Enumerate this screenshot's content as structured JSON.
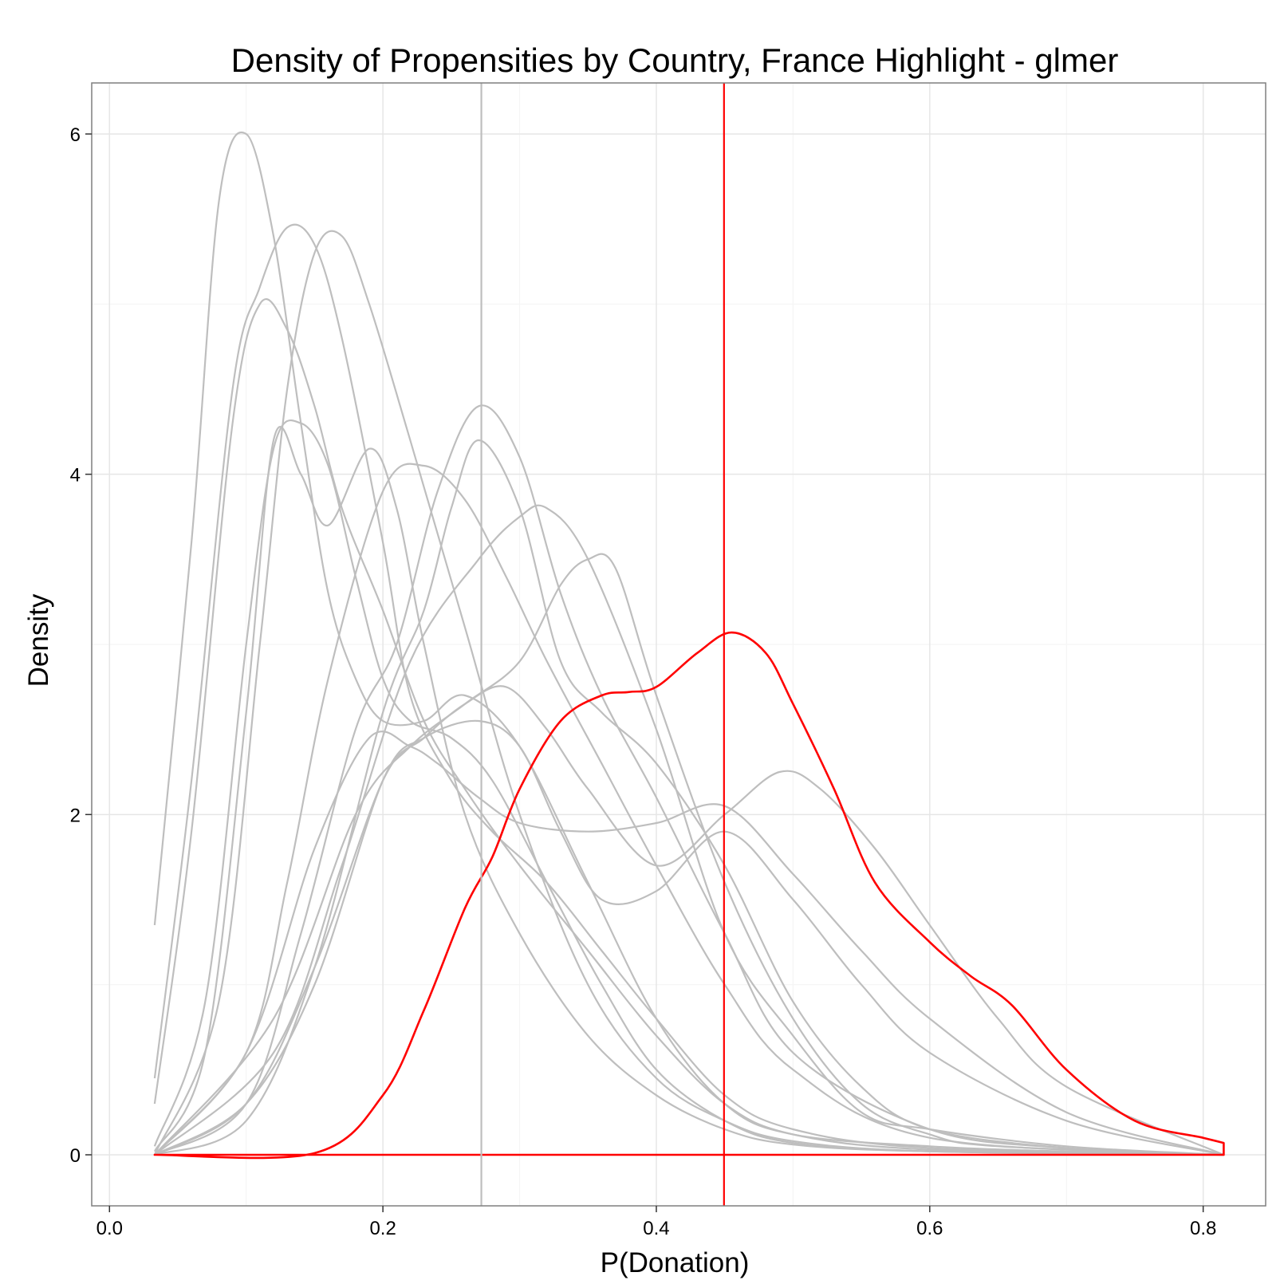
{
  "chart_data": {
    "type": "line",
    "title": "Density of Propensities by Country, France Highlight - glmer",
    "xlabel": "P(Donation)",
    "ylabel": "Density",
    "xlim": [
      -0.013,
      0.8457
    ],
    "ylim": [
      -0.3,
      6.3
    ],
    "x_ticks": [
      0.0,
      0.2,
      0.4,
      0.6,
      0.8
    ],
    "x_tick_labels": [
      "0.0",
      "0.2",
      "0.4",
      "0.6",
      "0.8"
    ],
    "y_ticks": [
      0,
      2,
      4,
      6
    ],
    "y_tick_labels": [
      "0",
      "2",
      "4",
      "6"
    ],
    "grid": true,
    "legend": "none",
    "colors": {
      "other": "#bebebe",
      "highlight": "#ff0000",
      "panel_border": "#7f7f7f",
      "grid_major": "#e6e6e6",
      "grid_minor": "#f5f5f5"
    },
    "vlines": [
      {
        "x": 0.272,
        "color": "#bebebe"
      },
      {
        "x": 0.4495,
        "color": "#ff0000"
      }
    ],
    "series": [
      {
        "color": "#bebebe",
        "x": [
          0.033,
          0.06,
          0.08,
          0.1,
          0.12,
          0.14,
          0.16,
          0.18,
          0.2,
          0.23,
          0.26,
          0.3,
          0.35,
          0.4,
          0.45,
          0.5,
          0.6,
          0.7,
          0.815
        ],
        "y": [
          1.35,
          3.6,
          5.6,
          6.0,
          5.4,
          4.3,
          3.3,
          2.8,
          2.55,
          2.55,
          2.7,
          2.4,
          1.6,
          0.8,
          0.3,
          0.12,
          0.05,
          0.02,
          0.0
        ]
      },
      {
        "color": "#bebebe",
        "x": [
          0.033,
          0.06,
          0.09,
          0.11,
          0.13,
          0.15,
          0.17,
          0.2,
          0.22,
          0.25,
          0.28,
          0.32,
          0.36,
          0.4,
          0.45,
          0.5,
          0.6,
          0.815
        ],
        "y": [
          0.45,
          2.2,
          4.5,
          5.1,
          5.45,
          5.35,
          4.8,
          3.6,
          2.7,
          2.2,
          1.9,
          1.6,
          1.2,
          0.8,
          0.35,
          0.15,
          0.04,
          0.0
        ]
      },
      {
        "color": "#bebebe",
        "x": [
          0.033,
          0.06,
          0.09,
          0.11,
          0.13,
          0.15,
          0.17,
          0.2,
          0.23,
          0.26,
          0.3,
          0.35,
          0.4,
          0.45,
          0.5,
          0.6,
          0.815
        ],
        "y": [
          0.3,
          1.9,
          4.3,
          5.0,
          4.85,
          4.4,
          3.8,
          3.2,
          2.55,
          2.15,
          1.7,
          1.2,
          0.7,
          0.3,
          0.12,
          0.03,
          0.0
        ]
      },
      {
        "color": "#bebebe",
        "x": [
          0.033,
          0.08,
          0.11,
          0.13,
          0.15,
          0.17,
          0.19,
          0.22,
          0.26,
          0.3,
          0.35,
          0.4,
          0.45,
          0.5,
          0.6,
          0.815
        ],
        "y": [
          0.0,
          0.9,
          3.0,
          4.5,
          5.3,
          5.4,
          5.0,
          4.2,
          3.1,
          2.0,
          1.0,
          0.45,
          0.2,
          0.08,
          0.02,
          0.0
        ]
      },
      {
        "color": "#bebebe",
        "x": [
          0.033,
          0.07,
          0.1,
          0.12,
          0.14,
          0.16,
          0.18,
          0.2,
          0.22,
          0.25,
          0.28,
          0.32,
          0.36,
          0.4,
          0.45,
          0.5,
          0.6,
          0.815
        ],
        "y": [
          0.05,
          0.9,
          3.0,
          4.15,
          4.3,
          4.05,
          3.4,
          2.8,
          2.55,
          2.45,
          2.2,
          1.6,
          1.0,
          0.5,
          0.2,
          0.07,
          0.02,
          0.0
        ]
      },
      {
        "color": "#bebebe",
        "x": [
          0.033,
          0.07,
          0.1,
          0.12,
          0.14,
          0.16,
          0.19,
          0.21,
          0.23,
          0.26,
          0.3,
          0.35,
          0.4,
          0.45,
          0.5,
          0.6,
          0.815
        ],
        "y": [
          0.02,
          0.6,
          2.6,
          4.2,
          4.0,
          3.7,
          4.15,
          3.8,
          3.0,
          2.0,
          1.3,
          0.7,
          0.35,
          0.15,
          0.06,
          0.02,
          0.0
        ]
      },
      {
        "color": "#bebebe",
        "x": [
          0.033,
          0.1,
          0.13,
          0.16,
          0.2,
          0.23,
          0.26,
          0.29,
          0.32,
          0.36,
          0.4,
          0.45,
          0.5,
          0.6,
          0.815
        ],
        "y": [
          0.0,
          0.6,
          1.6,
          2.8,
          3.9,
          4.05,
          3.85,
          3.4,
          2.9,
          2.3,
          1.7,
          1.0,
          0.5,
          0.1,
          0.0
        ]
      },
      {
        "color": "#bebebe",
        "x": [
          0.033,
          0.1,
          0.14,
          0.18,
          0.21,
          0.24,
          0.27,
          0.3,
          0.33,
          0.36,
          0.4,
          0.45,
          0.5,
          0.6,
          0.7,
          0.815
        ],
        "y": [
          0.0,
          0.3,
          1.3,
          2.5,
          3.0,
          3.9,
          4.4,
          4.1,
          3.3,
          2.7,
          2.1,
          1.3,
          0.6,
          0.15,
          0.04,
          0.0
        ]
      },
      {
        "color": "#bebebe",
        "x": [
          0.033,
          0.1,
          0.15,
          0.2,
          0.23,
          0.25,
          0.27,
          0.3,
          0.33,
          0.36,
          0.4,
          0.45,
          0.5,
          0.55,
          0.6,
          0.7,
          0.815
        ],
        "y": [
          0.0,
          0.2,
          1.1,
          2.6,
          3.2,
          3.8,
          4.2,
          3.8,
          2.9,
          2.6,
          2.3,
          1.7,
          0.9,
          0.4,
          0.15,
          0.04,
          0.0
        ]
      },
      {
        "color": "#bebebe",
        "x": [
          0.033,
          0.12,
          0.17,
          0.22,
          0.27,
          0.3,
          0.32,
          0.35,
          0.4,
          0.45,
          0.5,
          0.55,
          0.6,
          0.7,
          0.815
        ],
        "y": [
          0.0,
          0.6,
          1.7,
          2.9,
          3.5,
          3.75,
          3.8,
          3.5,
          2.5,
          1.3,
          0.7,
          0.25,
          0.15,
          0.05,
          0.0
        ]
      },
      {
        "color": "#bebebe",
        "x": [
          0.033,
          0.12,
          0.18,
          0.22,
          0.26,
          0.3,
          0.33,
          0.35,
          0.37,
          0.4,
          0.45,
          0.5,
          0.55,
          0.6,
          0.65,
          0.815
        ],
        "y": [
          0.0,
          0.8,
          2.0,
          2.4,
          2.65,
          2.9,
          3.35,
          3.5,
          3.45,
          2.7,
          1.6,
          0.8,
          0.3,
          0.12,
          0.05,
          0.0
        ]
      },
      {
        "color": "#bebebe",
        "x": [
          0.033,
          0.1,
          0.15,
          0.19,
          0.22,
          0.24,
          0.27,
          0.3,
          0.35,
          0.4,
          0.45,
          0.5,
          0.55,
          0.6,
          0.7,
          0.815
        ],
        "y": [
          0.0,
          0.6,
          1.8,
          2.45,
          2.4,
          2.3,
          2.1,
          1.95,
          1.9,
          1.95,
          2.05,
          1.65,
          1.2,
          0.8,
          0.25,
          0.0
        ]
      },
      {
        "color": "#bebebe",
        "x": [
          0.033,
          0.1,
          0.15,
          0.2,
          0.23,
          0.26,
          0.29,
          0.32,
          0.35,
          0.4,
          0.45,
          0.49,
          0.52,
          0.56,
          0.6,
          0.65,
          0.7,
          0.815
        ],
        "y": [
          0.0,
          0.3,
          1.1,
          2.2,
          2.45,
          2.65,
          2.75,
          2.5,
          2.15,
          1.7,
          2.0,
          2.25,
          2.15,
          1.8,
          1.35,
          0.8,
          0.4,
          0.0
        ]
      },
      {
        "color": "#bebebe",
        "x": [
          0.033,
          0.1,
          0.15,
          0.2,
          0.23,
          0.27,
          0.3,
          0.33,
          0.36,
          0.4,
          0.45,
          0.5,
          0.55,
          0.6,
          0.7,
          0.815
        ],
        "y": [
          0.0,
          0.3,
          1.0,
          2.2,
          2.45,
          2.55,
          2.4,
          1.9,
          1.5,
          1.55,
          1.9,
          1.5,
          1.0,
          0.6,
          0.2,
          0.0
        ]
      },
      {
        "color": "#ff0000",
        "highlight": true,
        "x": [
          0.033,
          0.15,
          0.2,
          0.23,
          0.26,
          0.28,
          0.3,
          0.33,
          0.36,
          0.38,
          0.4,
          0.43,
          0.455,
          0.48,
          0.5,
          0.53,
          0.56,
          0.6,
          0.63,
          0.66,
          0.7,
          0.75,
          0.8,
          0.815,
          0.815,
          0.033
        ],
        "y": [
          0.0,
          0.01,
          0.35,
          0.85,
          1.45,
          1.75,
          2.15,
          2.55,
          2.7,
          2.72,
          2.75,
          2.95,
          3.07,
          2.95,
          2.65,
          2.15,
          1.6,
          1.25,
          1.05,
          0.88,
          0.5,
          0.2,
          0.1,
          0.07,
          0.0,
          0.0
        ]
      }
    ]
  }
}
